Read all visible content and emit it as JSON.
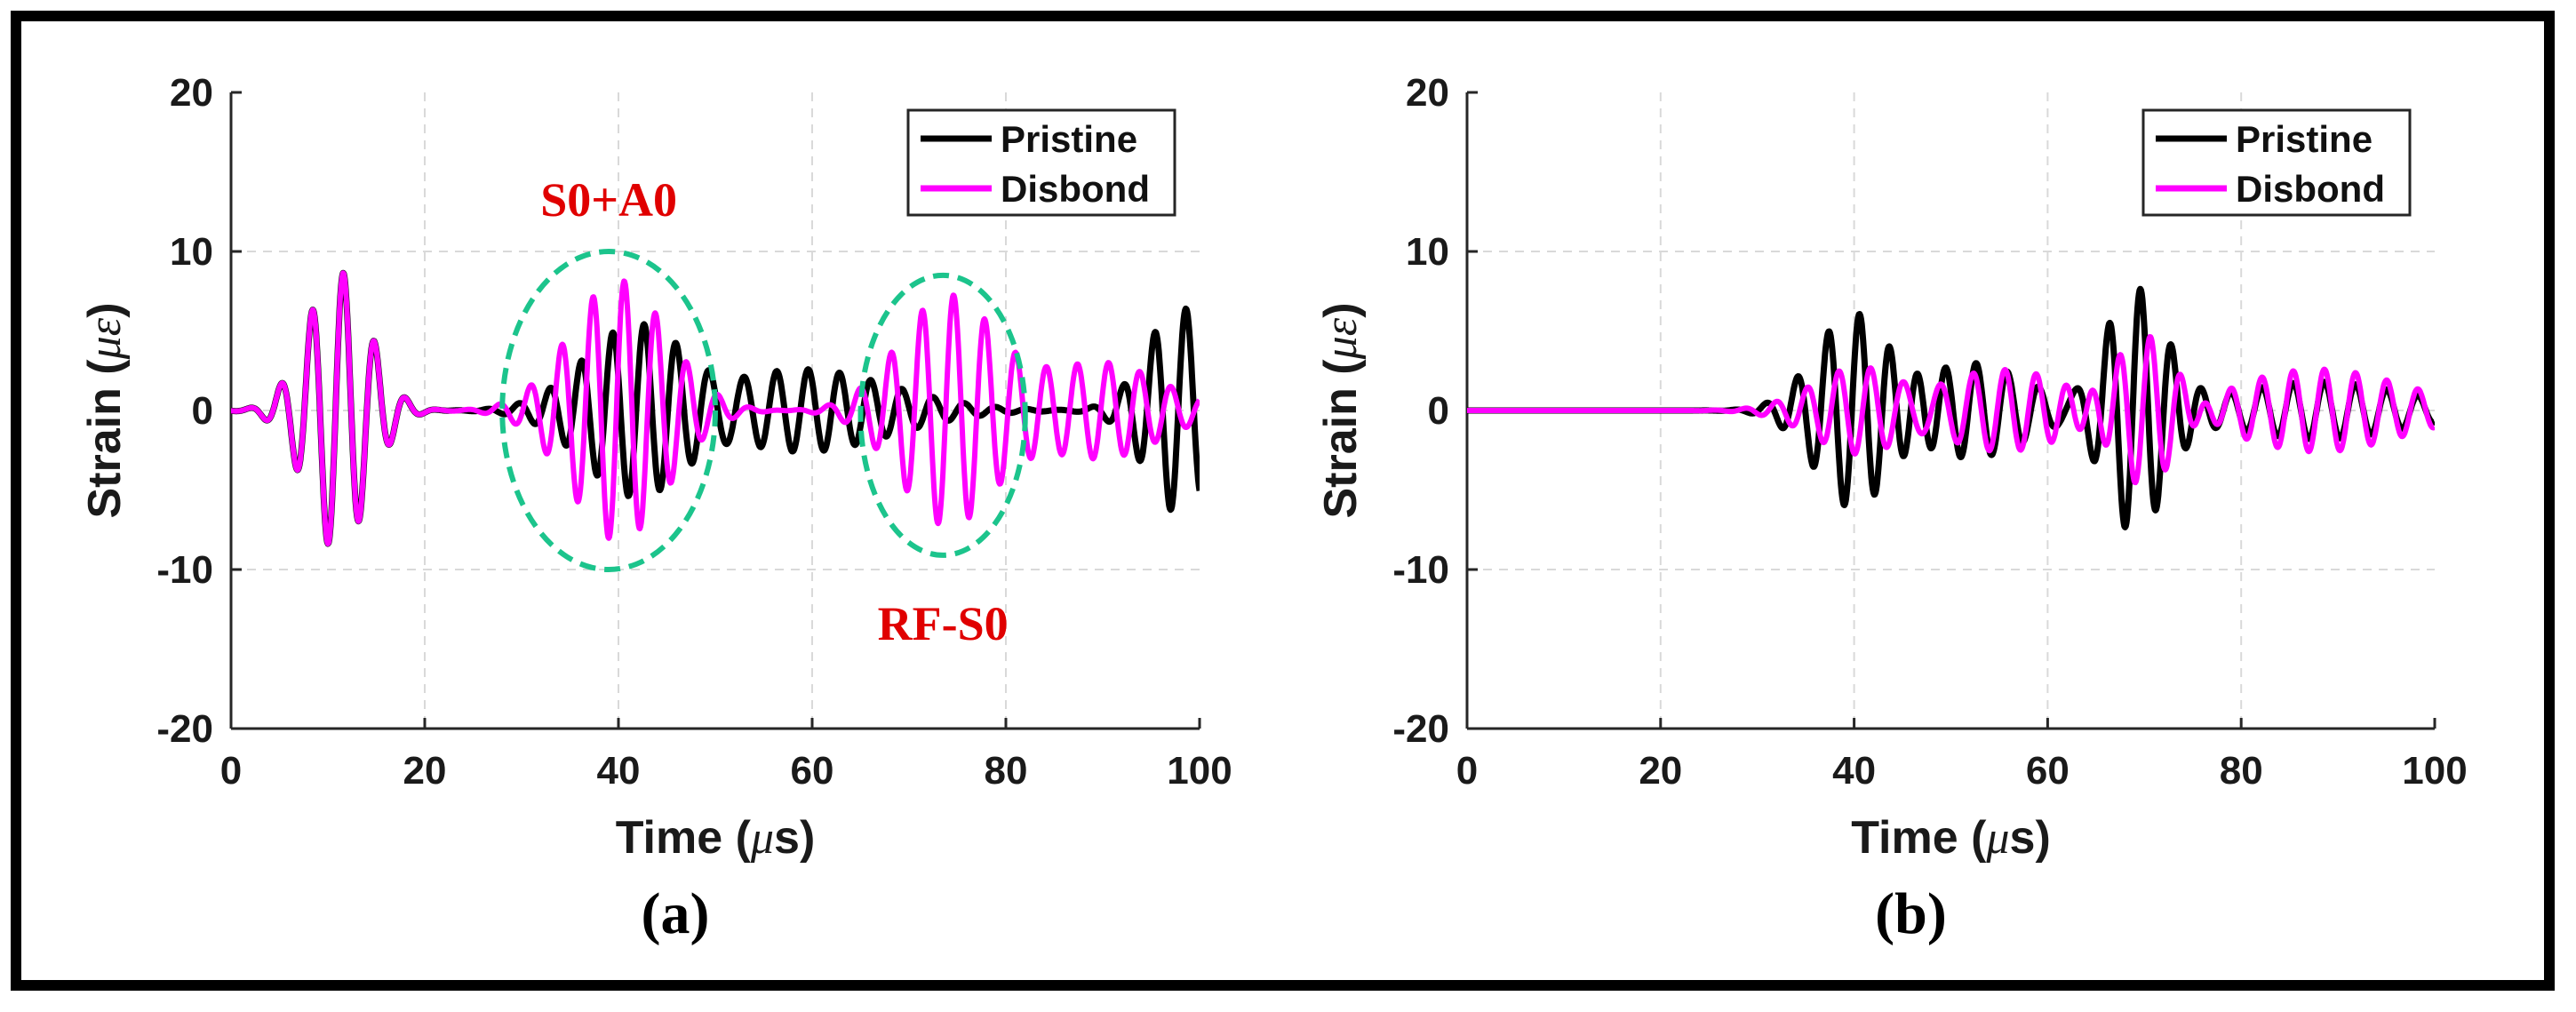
{
  "chart_data": [
    {
      "type": "line",
      "panel_label": "(a)",
      "xlabel": {
        "prefix": "Time (",
        "mu": "μ",
        "suffix": "s)"
      },
      "ylabel": {
        "prefix": "Strain (",
        "mu": "με",
        "suffix": ")"
      },
      "xlim": [
        0,
        100
      ],
      "ylim": [
        -20,
        20
      ],
      "xticks": [
        0,
        20,
        40,
        60,
        80,
        100
      ],
      "yticks": [
        -20,
        -10,
        0,
        10,
        20
      ],
      "xtick_labels": [
        "0",
        "20",
        "40",
        "60",
        "80",
        "100"
      ],
      "ytick_labels": [
        "-20",
        "-10",
        "0",
        "10",
        "20"
      ],
      "grid": true,
      "legend": "top-right",
      "series": [
        {
          "name": "Pristine",
          "color": "#000000"
        },
        {
          "name": "Disbond",
          "color": "#ff00ff"
        }
      ],
      "annotations": [
        {
          "text": "S0+A0",
          "ellipse_center": [
            39,
            0
          ],
          "ellipse_half_width": 11,
          "ellipse_half_height": 10
        },
        {
          "text": "RF-S0",
          "ellipse_center": [
            73.5,
            -0.3
          ],
          "ellipse_half_width": 8.5,
          "ellipse_half_height": 8.8
        }
      ],
      "signal_model": {
        "pristine_packets": [
          {
            "t0": 11,
            "amp": 8.8,
            "sigma": 3.2,
            "freq": 0.31
          },
          {
            "t0": 42,
            "amp": 5.5,
            "sigma": 5.5,
            "freq": 0.31
          },
          {
            "t0": 59,
            "amp": 2.6,
            "sigma": 9,
            "freq": 0.31
          },
          {
            "t0": 98,
            "amp": 6.5,
            "sigma": 3.5,
            "freq": 0.31
          }
        ],
        "disbond_packets": [
          {
            "t0": 11,
            "amp": 8.8,
            "sigma": 3.2,
            "freq": 0.31
          },
          {
            "t0": 40,
            "amp": 8.2,
            "sigma": 5,
            "freq": 0.31
          },
          {
            "t0": 74,
            "amp": 7.2,
            "sigma": 5,
            "freq": 0.31
          },
          {
            "t0": 90,
            "amp": 3.0,
            "sigma": 6,
            "freq": 0.31
          }
        ]
      }
    },
    {
      "type": "line",
      "panel_label": "(b)",
      "xlabel": {
        "prefix": "Time (",
        "mu": "μ",
        "suffix": "s)"
      },
      "ylabel": {
        "prefix": "Strain (",
        "mu": "με",
        "suffix": ")"
      },
      "xlim": [
        0,
        100
      ],
      "ylim": [
        -20,
        20
      ],
      "xticks": [
        0,
        20,
        40,
        60,
        80,
        100
      ],
      "yticks": [
        -20,
        -10,
        0,
        10,
        20
      ],
      "xtick_labels": [
        "0",
        "20",
        "40",
        "60",
        "80",
        "100"
      ],
      "ytick_labels": [
        "-20",
        "-10",
        "0",
        "10",
        "20"
      ],
      "grid": true,
      "legend": "top-right",
      "series": [
        {
          "name": "Pristine",
          "color": "#000000"
        },
        {
          "name": "Disbond",
          "color": "#ff00ff"
        }
      ],
      "annotations": [],
      "signal_model": {
        "pristine_packets": [
          {
            "t0": 40,
            "amp": 6.2,
            "sigma": 4,
            "freq": 0.31
          },
          {
            "t0": 52,
            "amp": 3.0,
            "sigma": 6,
            "freq": 0.31
          },
          {
            "t0": 69,
            "amp": 7.6,
            "sigma": 3.2,
            "freq": 0.31
          },
          {
            "t0": 88,
            "amp": 1.8,
            "sigma": 9,
            "freq": 0.31
          }
        ],
        "disbond_packets": [
          {
            "t0": 41,
            "amp": 3.0,
            "sigma": 5,
            "freq": 0.31
          },
          {
            "t0": 55,
            "amp": 2.6,
            "sigma": 8,
            "freq": 0.31
          },
          {
            "t0": 70,
            "amp": 5.3,
            "sigma": 3.5,
            "freq": 0.31
          },
          {
            "t0": 88,
            "amp": 2.6,
            "sigma": 9,
            "freq": 0.31
          }
        ]
      }
    }
  ]
}
